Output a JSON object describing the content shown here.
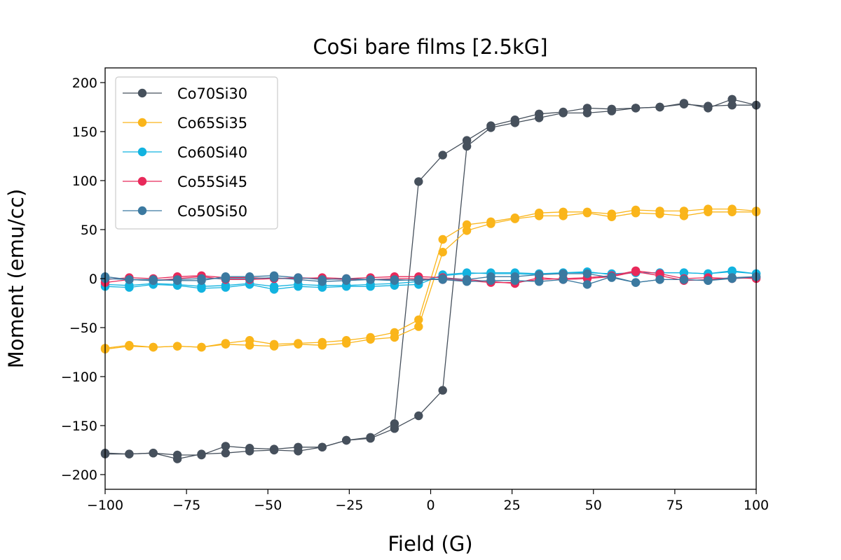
{
  "chart_data": {
    "type": "line",
    "title": "CoSi bare films [2.5kG]",
    "xlabel": "Field (G)",
    "ylabel": "Moment (emu/cc)",
    "xlim": [
      -100,
      100
    ],
    "ylim": [
      -215,
      215
    ],
    "xticks": [
      -100,
      -75,
      -50,
      -25,
      0,
      25,
      50,
      75,
      100
    ],
    "xtick_labels": [
      "−100",
      "−75",
      "−50",
      "−25",
      "0",
      "25",
      "50",
      "75",
      "100"
    ],
    "yticks": [
      200,
      150,
      100,
      50,
      0,
      -50,
      -100,
      -150,
      -200
    ],
    "ytick_labels": [
      "200",
      "150",
      "100",
      "50",
      "0",
      "−50",
      "−100",
      "−150",
      "−200"
    ],
    "legend_position": "top-left",
    "grid": false,
    "series": [
      {
        "name": "Co70Si30",
        "color": "#46505c",
        "descending": {
          "x": [
            100,
            92.6,
            85.2,
            77.8,
            70.4,
            63,
            55.6,
            48.1,
            40.7,
            33.3,
            25.9,
            18.5,
            11.1,
            3.7,
            -3.7,
            -11.1,
            -18.5,
            -25.9,
            -33.3,
            -40.7,
            -48.1,
            -55.6,
            -63,
            -70.4,
            -77.8,
            -85.2,
            -92.6,
            -100
          ],
          "y": [
            177,
            177,
            176,
            178,
            175,
            174,
            173,
            174,
            170,
            168,
            162,
            156,
            141,
            126,
            99,
            -148,
            -162,
            -165,
            -172,
            -172,
            -174,
            -173,
            -171,
            -180,
            -180,
            -178,
            -179,
            -178
          ]
        },
        "ascending": {
          "x": [
            -100,
            -92.6,
            -85.2,
            -77.8,
            -70.4,
            -63,
            -55.6,
            -48.1,
            -40.7,
            -33.3,
            -25.9,
            -18.5,
            -11.1,
            -3.7,
            3.7,
            11.1,
            18.5,
            25.9,
            33.3,
            40.7,
            48.1,
            55.6,
            63,
            70.4,
            77.8,
            85.2,
            92.6,
            100
          ],
          "y": [
            -179,
            -179,
            -178,
            -184,
            -179,
            -178,
            -176,
            -175,
            -176,
            -172,
            -165,
            -163,
            -153,
            -140,
            -114,
            135,
            154,
            159,
            164,
            169,
            169,
            171,
            174,
            175,
            179,
            174,
            183,
            177
          ]
        }
      },
      {
        "name": "Co65Si35",
        "color": "#fab51a",
        "descending": {
          "x": [
            100,
            92.6,
            85.2,
            77.8,
            70.4,
            63,
            55.6,
            48.1,
            40.7,
            33.3,
            25.9,
            18.5,
            11.1,
            3.7,
            -3.7,
            -11.1,
            -18.5,
            -25.9,
            -33.3,
            -40.7,
            -48.1,
            -55.6,
            -63,
            -70.4,
            -77.8,
            -85.2,
            -92.6,
            -100
          ],
          "y": [
            69,
            71,
            71,
            69,
            69,
            70,
            66,
            68,
            68,
            67,
            62,
            58,
            55,
            40,
            -42,
            -55,
            -60,
            -63,
            -65,
            -66,
            -67,
            -63,
            -66,
            -70,
            -69,
            -70,
            -68,
            -71
          ]
        },
        "ascending": {
          "x": [
            -100,
            -92.6,
            -85.2,
            -77.8,
            -70.4,
            -63,
            -55.6,
            -48.1,
            -40.7,
            -33.3,
            -25.9,
            -18.5,
            -11.1,
            -3.7,
            3.7,
            11.1,
            18.5,
            25.9,
            33.3,
            40.7,
            48.1,
            55.6,
            63,
            70.4,
            77.8,
            85.2,
            92.6,
            100
          ],
          "y": [
            -72,
            -69,
            -70,
            -69,
            -70,
            -67,
            -68,
            -69,
            -67,
            -68,
            -66,
            -62,
            -60,
            -49,
            27,
            49,
            56,
            61,
            64,
            64,
            67,
            63,
            67,
            66,
            64,
            68,
            68,
            68
          ]
        }
      },
      {
        "name": "Co60Si40",
        "color": "#12b3e0",
        "descending": {
          "x": [
            100,
            92.6,
            85.2,
            77.8,
            70.4,
            63,
            55.6,
            48.1,
            40.7,
            33.3,
            25.9,
            18.5,
            11.1,
            3.7,
            -3.7,
            -11.1,
            -18.5,
            -25.9,
            -33.3,
            -40.7,
            -48.1,
            -55.6,
            -63,
            -70.4,
            -77.8,
            -85.2,
            -92.6,
            -100
          ],
          "y": [
            5,
            8,
            5,
            6,
            6,
            6,
            5,
            6,
            6,
            5,
            6,
            6,
            5,
            3,
            -3,
            -5,
            -6,
            -7,
            -7,
            -6,
            -8,
            -5,
            -7,
            -8,
            -6,
            -5,
            -7,
            -6
          ]
        },
        "ascending": {
          "x": [
            -100,
            -92.6,
            -85.2,
            -77.8,
            -70.4,
            -63,
            -55.6,
            -48.1,
            -40.7,
            -33.3,
            -25.9,
            -18.5,
            -11.1,
            -3.7,
            3.7,
            11.1,
            18.5,
            25.9,
            33.3,
            40.7,
            48.1,
            55.6,
            63,
            70.4,
            77.8,
            85.2,
            92.6,
            100
          ],
          "y": [
            -8,
            -9,
            -6,
            -7,
            -10,
            -9,
            -6,
            -11,
            -8,
            -9,
            -8,
            -8,
            -7,
            -6,
            4,
            6,
            5,
            5,
            4,
            6,
            7,
            4,
            6,
            6,
            6,
            5,
            7,
            5
          ]
        }
      },
      {
        "name": "Co55Si45",
        "color": "#e8295a",
        "descending": {
          "x": [
            100,
            92.6,
            85.2,
            77.8,
            70.4,
            63,
            55.6,
            48.1,
            40.7,
            33.3,
            25.9,
            18.5,
            11.1,
            3.7,
            -3.7,
            -11.1,
            -18.5,
            -25.9,
            -33.3,
            -40.7,
            -48.1,
            -55.6,
            -63,
            -70.4,
            -77.8,
            -85.2,
            -92.6,
            -100
          ],
          "y": [
            0,
            1,
            -1,
            -2,
            3,
            7,
            2,
            0,
            -1,
            1,
            -5,
            -3,
            -1,
            1,
            2,
            2,
            1,
            0,
            1,
            0,
            0,
            1,
            1,
            3,
            2,
            0,
            1,
            -1
          ]
        },
        "ascending": {
          "x": [
            -100,
            -92.6,
            -85.2,
            -77.8,
            -70.4,
            -63,
            -55.6,
            -48.1,
            -40.7,
            -33.3,
            -25.9,
            -18.5,
            -11.1,
            -3.7,
            3.7,
            11.1,
            18.5,
            25.9,
            33.3,
            40.7,
            48.1,
            55.6,
            63,
            70.4,
            77.8,
            85.2,
            92.6,
            100
          ],
          "y": [
            -4,
            -1,
            -2,
            0,
            2,
            -1,
            -1,
            0,
            1,
            0,
            -1,
            -1,
            0,
            0,
            -1,
            -2,
            -4,
            -4,
            -1,
            0,
            1,
            3,
            8,
            5,
            0,
            1,
            0,
            1
          ]
        }
      },
      {
        "name": "Co50Si50",
        "color": "#3b79a0",
        "descending": {
          "x": [
            100,
            92.6,
            85.2,
            77.8,
            70.4,
            63,
            55.6,
            48.1,
            40.7,
            33.3,
            25.9,
            18.5,
            11.1,
            3.7,
            -3.7,
            -11.1,
            -18.5,
            -25.9,
            -33.3,
            -40.7,
            -48.1,
            -55.6,
            -63,
            -70.4,
            -77.8,
            -85.2,
            -92.6,
            -100
          ],
          "y": [
            2,
            0,
            -2,
            -1,
            -1,
            -4,
            1,
            5,
            5,
            4,
            2,
            2,
            -1,
            0,
            -2,
            -1,
            -1,
            -2,
            -3,
            -1,
            1,
            0,
            0,
            0,
            -1,
            -2,
            -1,
            0
          ]
        },
        "ascending": {
          "x": [
            -100,
            -92.6,
            -85.2,
            -77.8,
            -70.4,
            -63,
            -55.6,
            -48.1,
            -40.7,
            -33.3,
            -25.9,
            -18.5,
            -11.1,
            -3.7,
            3.7,
            11.1,
            18.5,
            25.9,
            33.3,
            40.7,
            48.1,
            55.6,
            63,
            70.4,
            77.8,
            85.2,
            92.6,
            100
          ],
          "y": [
            2,
            -1,
            -1,
            -2,
            -2,
            2,
            2,
            3,
            1,
            -1,
            0,
            -1,
            -2,
            -1,
            -1,
            -3,
            -2,
            -2,
            -3,
            -1,
            -6,
            2,
            -4,
            -1,
            -1,
            -2,
            1,
            2
          ]
        }
      }
    ]
  }
}
